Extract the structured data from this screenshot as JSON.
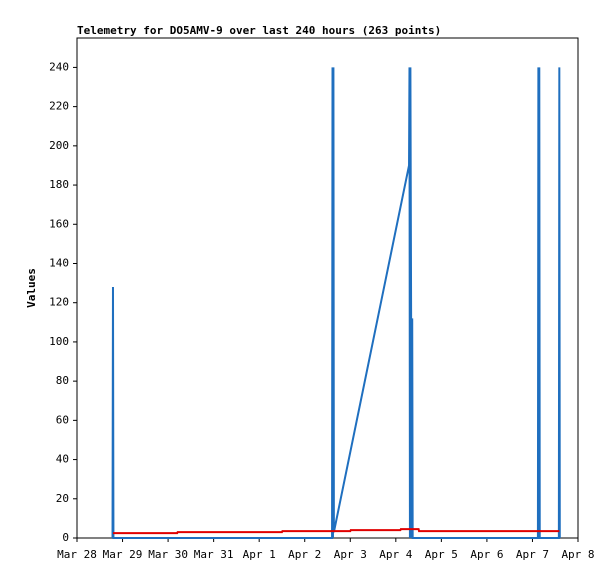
{
  "chart_data": {
    "type": "line",
    "title": "Telemetry for DO5AMV-9 over last 240 hours (263 points)",
    "y_label": "Values",
    "xlim": [
      0,
      11
    ],
    "xticks": [
      {
        "value": 0,
        "label": "Mar 28"
      },
      {
        "value": 1,
        "label": "Mar 29"
      },
      {
        "value": 2,
        "label": "Mar 30"
      },
      {
        "value": 3,
        "label": "Mar 31"
      },
      {
        "value": 4,
        "label": "Apr 1"
      },
      {
        "value": 5,
        "label": "Apr 2"
      },
      {
        "value": 6,
        "label": "Apr 3"
      },
      {
        "value": 7,
        "label": "Apr 4"
      },
      {
        "value": 8,
        "label": "Apr 5"
      },
      {
        "value": 9,
        "label": "Apr 6"
      },
      {
        "value": 10,
        "label": "Apr 7"
      },
      {
        "value": 11,
        "label": "Apr 8"
      }
    ],
    "ylim": [
      0,
      255
    ],
    "yticks": [
      0,
      20,
      40,
      60,
      80,
      100,
      120,
      140,
      160,
      180,
      200,
      220,
      240
    ],
    "series": [
      {
        "color": "#1f6fbf",
        "width": 2,
        "x": [
          0.78,
          0.79,
          0.8,
          5.6,
          5.61,
          5.62,
          5.63,
          5.64,
          7.29,
          7.3,
          7.31,
          7.32,
          7.35,
          7.36,
          7.37,
          10.12,
          10.13,
          10.14,
          10.15,
          10.16,
          10.58,
          10.59,
          10.6
        ],
        "values": [
          0,
          128,
          0,
          0,
          240,
          0,
          240,
          3,
          190,
          240,
          0,
          240,
          0,
          112,
          0,
          0,
          240,
          0,
          240,
          0,
          0,
          240,
          0
        ]
      },
      {
        "color": "#e00000",
        "width": 2,
        "x": [
          0.79,
          2.2,
          2.21,
          4.5,
          4.51,
          6.0,
          6.01,
          7.1,
          7.11,
          7.5,
          7.51,
          10.59
        ],
        "values": [
          2.5,
          2.5,
          3,
          3,
          3.5,
          3.5,
          4,
          4,
          4.5,
          4.5,
          3.5,
          3.5
        ]
      }
    ]
  }
}
